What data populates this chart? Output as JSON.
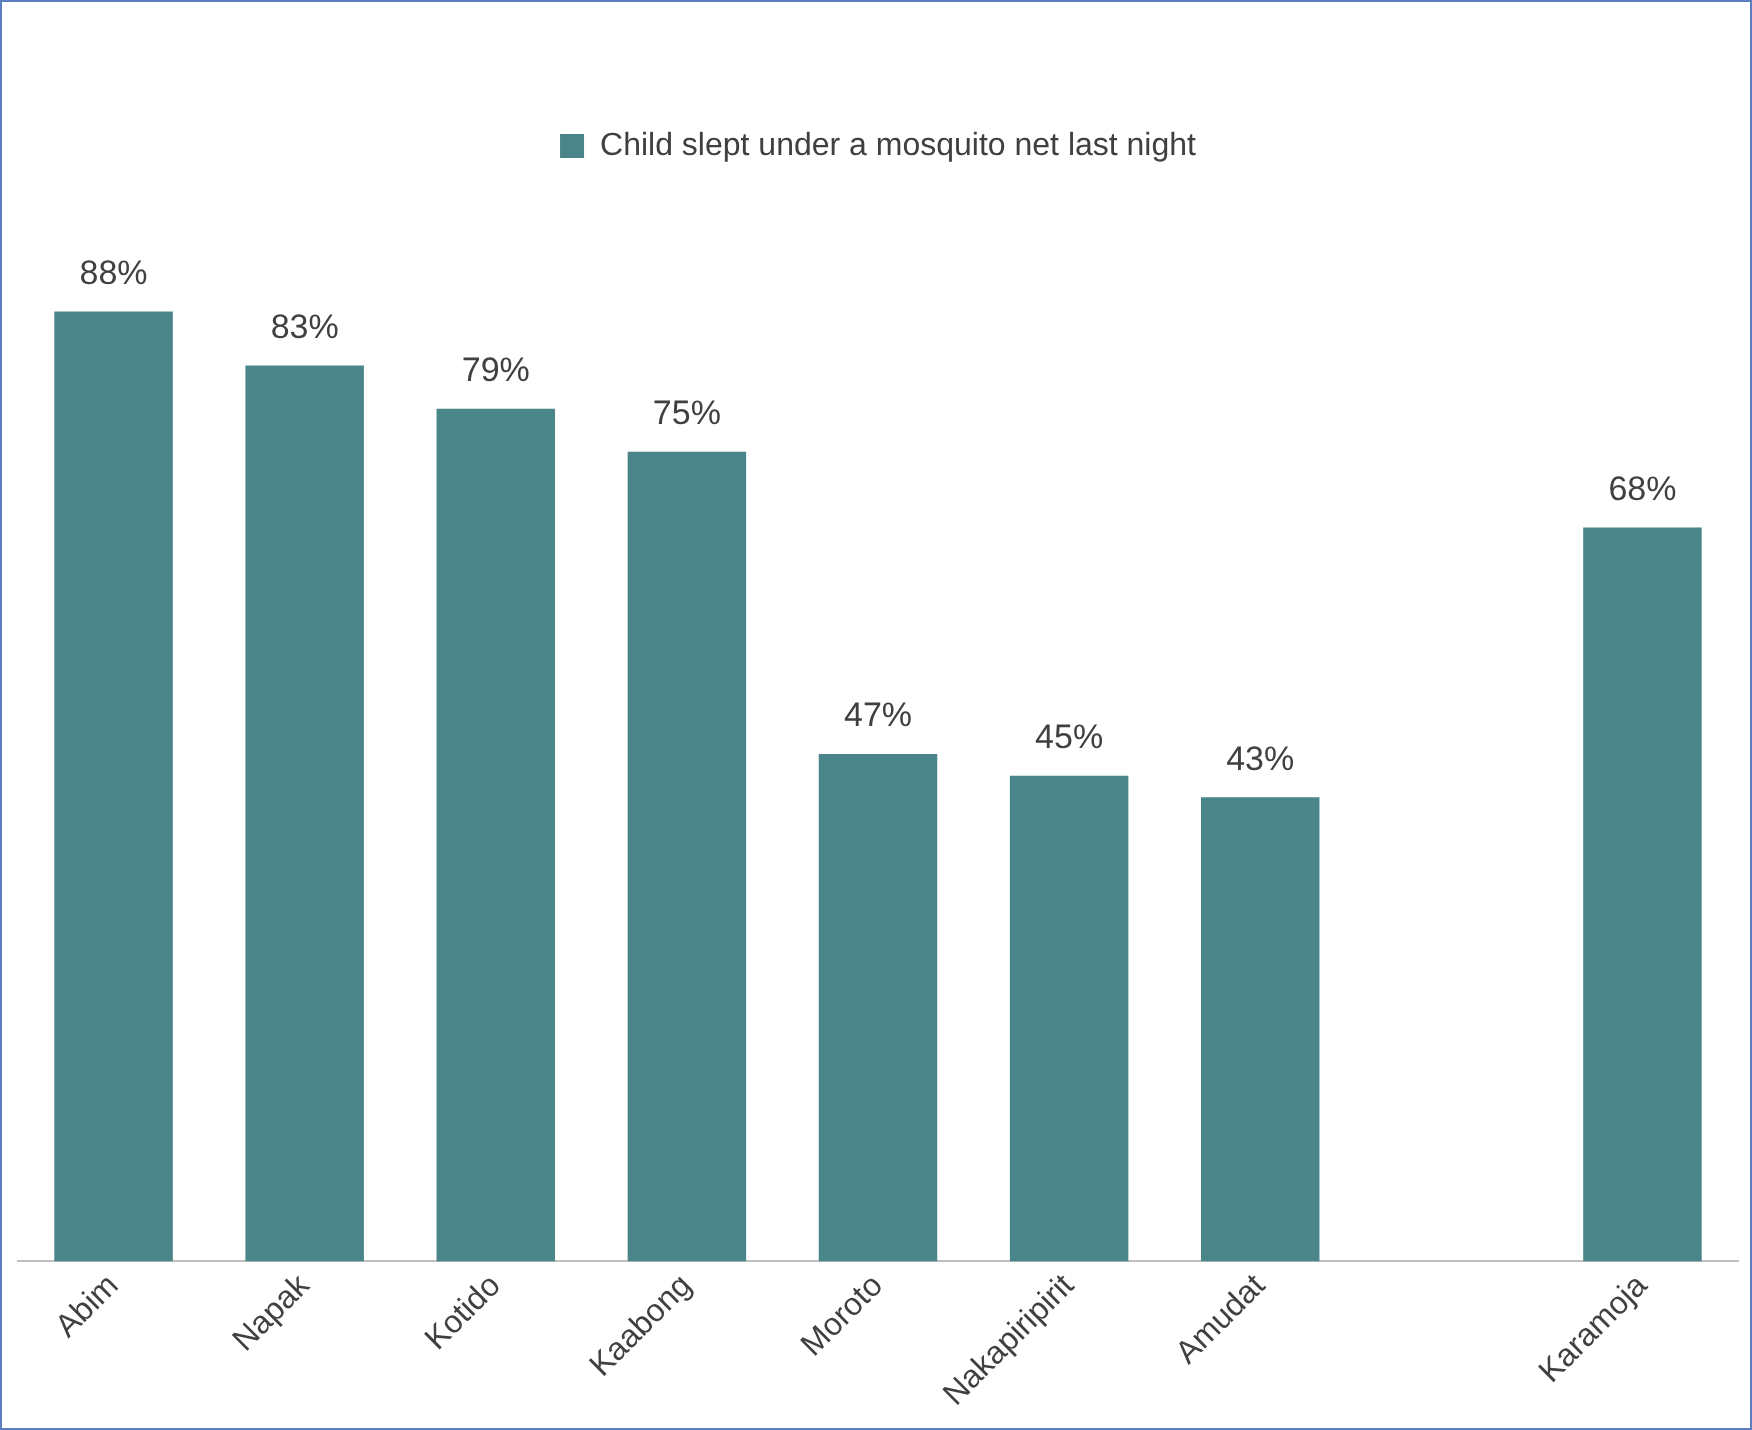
{
  "chart_data": {
    "type": "bar",
    "categories": [
      "Abim",
      "Napak",
      "Kotido",
      "Kaabong",
      "Moroto",
      "Nakapiripirit",
      "Amudat",
      null,
      "Karamoja"
    ],
    "series": [
      {
        "name": "Child slept under a mosquito net last night",
        "color": "#4a8589",
        "values": [
          88,
          83,
          79,
          75,
          47,
          45,
          43,
          null,
          68
        ],
        "value_labels": [
          "88%",
          "83%",
          "79%",
          "75%",
          "47%",
          "45%",
          "43%",
          null,
          "68%"
        ]
      }
    ],
    "tick_labels": "x",
    "grid": false,
    "legend": "top"
  }
}
